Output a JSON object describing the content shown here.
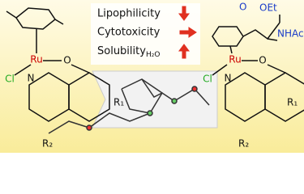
{
  "properties": [
    "Lipophilicity",
    "Cytotoxicity",
    "Solubility"
  ],
  "solubility_subscript": "H₂O",
  "left_complex": {
    "metal": "Ru",
    "chloride": "Cl",
    "oxygen": "O",
    "nitrogen": "N",
    "r1": "R₁",
    "r2": "R₂"
  },
  "right_complex": {
    "metal": "Ru",
    "chloride": "Cl",
    "oxygen": "O",
    "nitrogen": "N",
    "r1": "R₁",
    "r2": "R₂",
    "ester_oxygen": "O",
    "ester": "OEt",
    "amide": "NHAc"
  }
}
